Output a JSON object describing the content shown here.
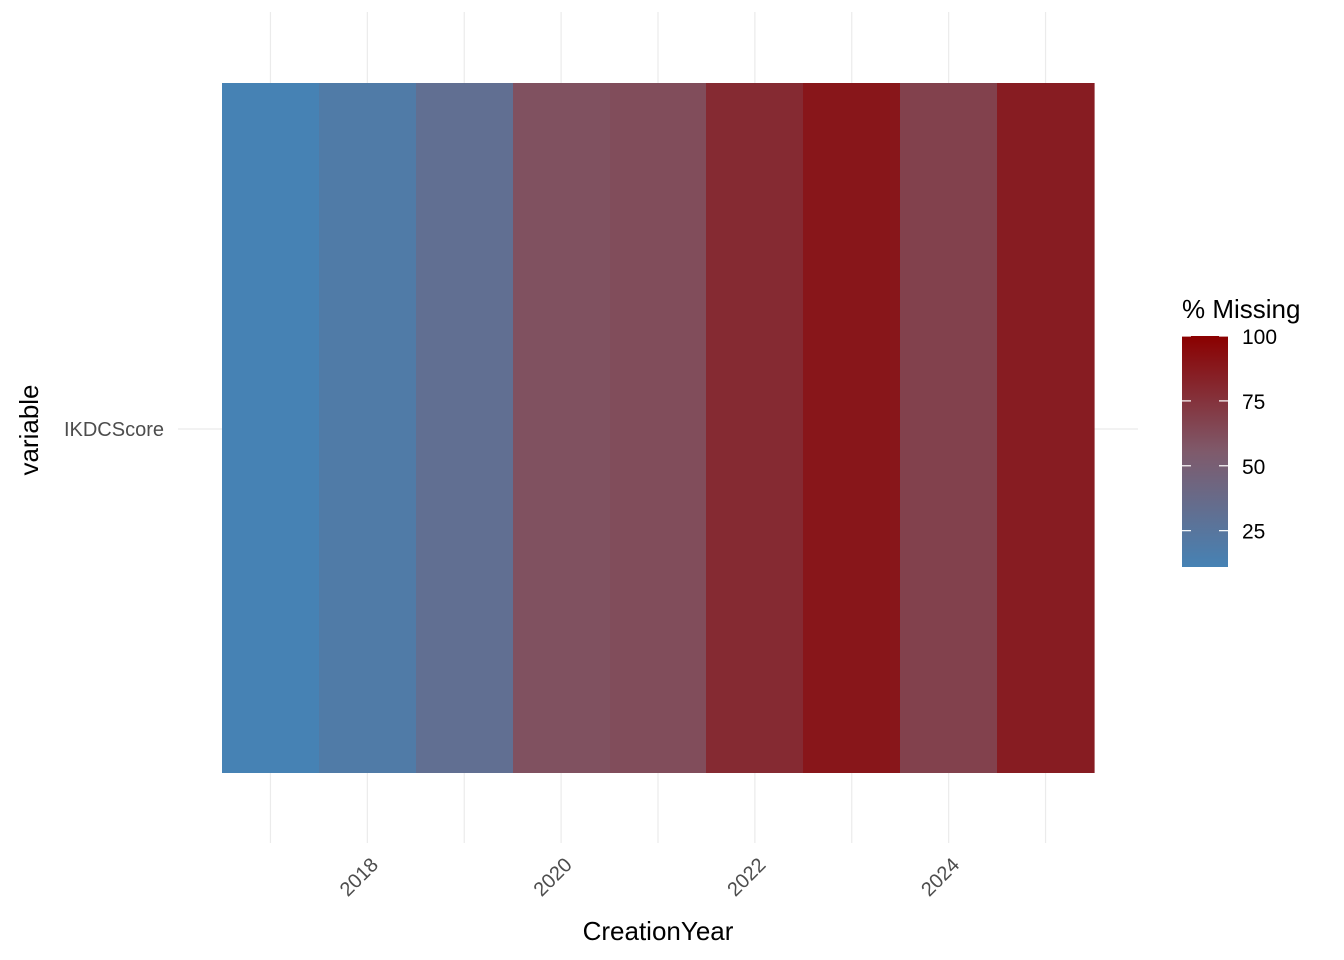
{
  "chart_data": {
    "type": "heatmap",
    "x_label": "CreationYear",
    "y_label": "variable",
    "x": [
      2017,
      2018,
      2019,
      2020,
      2021,
      2022,
      2023,
      2024,
      2025
    ],
    "y_categories": [
      "IKDCScore"
    ],
    "values": [
      [
        11,
        19,
        32,
        60,
        62,
        79,
        89,
        68,
        86
      ]
    ],
    "x_ticks": [
      "2018",
      "2020",
      "2022",
      "2024"
    ],
    "x_range": [
      2016.5,
      2025.5
    ],
    "grid": true,
    "legend": {
      "title": "% Missing",
      "placement": "right",
      "ticks": [
        "25",
        "50",
        "75",
        "100"
      ],
      "range": [
        11,
        100
      ],
      "color_low": "#4682B4",
      "color_mid": "#7F5A6B",
      "color_high": "#8B0000"
    }
  }
}
